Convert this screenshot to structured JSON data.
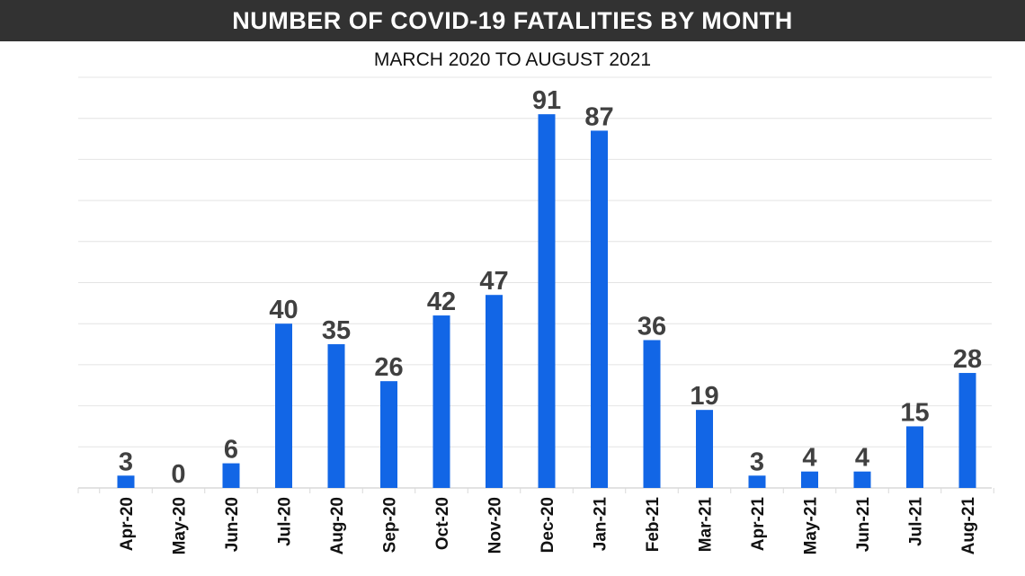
{
  "chart_data": {
    "type": "bar",
    "title": "NUMBER OF COVID-19 FATALITIES BY MONTH",
    "subtitle": "MARCH 2020 TO AUGUST 2021",
    "categories": [
      "Apr-20",
      "May-20",
      "Jun-20",
      "Jul-20",
      "Aug-20",
      "Sep-20",
      "Oct-20",
      "Nov-20",
      "Dec-20",
      "Jan-21",
      "Feb-21",
      "Mar-21",
      "Apr-21",
      "May-21",
      "Jun-21",
      "Jul-21",
      "Aug-21"
    ],
    "values": [
      3,
      0,
      6,
      40,
      35,
      26,
      42,
      47,
      91,
      87,
      36,
      19,
      3,
      4,
      4,
      15,
      28
    ],
    "xlabel": "",
    "ylabel": "",
    "ylim": [
      0,
      100
    ],
    "grid": true,
    "data_labels": true,
    "colors": {
      "bar": "#1266e6",
      "title_bg": "#323232",
      "label": "#404040",
      "grid": "#e4e4e4"
    }
  }
}
